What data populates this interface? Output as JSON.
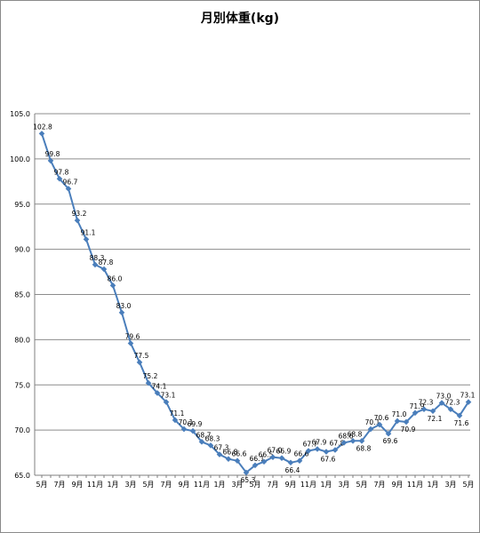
{
  "chart_data": {
    "type": "line",
    "title": "月別体重(kg)",
    "xlabel": "",
    "ylabel": "",
    "ylim": [
      65.0,
      105.0
    ],
    "yticks": [
      "65.0",
      "70.0",
      "75.0",
      "80.0",
      "85.0",
      "90.0",
      "95.0",
      "100.0",
      "105.0"
    ],
    "grid": "horizontal",
    "legend": "none",
    "colors": {
      "line": "#4a7ebb",
      "grid": "#8c8c8c",
      "axis": "#7f7f7f"
    },
    "x_tick_labels": [
      "5月",
      "7月",
      "9月",
      "11月",
      "1月",
      "3月",
      "5月",
      "7月",
      "9月",
      "11月",
      "1月",
      "3月",
      "5月",
      "7月",
      "9月",
      "11月",
      "1月",
      "3月",
      "5月",
      "7月",
      "9月",
      "11月",
      "1月",
      "3月",
      "5月"
    ],
    "values": [
      102.8,
      99.8,
      97.8,
      96.7,
      93.2,
      91.1,
      88.3,
      87.8,
      86.0,
      83.0,
      79.6,
      77.5,
      75.2,
      74.1,
      73.1,
      71.1,
      70.1,
      69.9,
      68.7,
      68.3,
      67.3,
      66.8,
      66.6,
      65.3,
      66.1,
      66.5,
      67.0,
      66.9,
      66.4,
      66.6,
      67.7,
      67.9,
      67.6,
      67.8,
      68.6,
      68.8,
      68.8,
      70.1,
      70.6,
      69.6,
      71.0,
      70.9,
      71.9,
      72.3,
      72.1,
      73.0,
      72.3,
      71.6,
      73.1
    ],
    "data_labels": [
      "102.8",
      "99.8",
      "97.8",
      "96.7",
      "93.2",
      "91.1",
      "88.3",
      "87.8",
      "86.0",
      "83.0",
      "79.6",
      "77.5",
      "75.2",
      "74.1",
      "73.1",
      "71.1",
      "70.1",
      "69.9",
      "68.7",
      "68.3",
      "67.3",
      "66.8",
      "66.6",
      "65.3",
      "66.1",
      "66.5",
      "67.0",
      "66.9",
      "66.4",
      "66.6",
      "67.7",
      "67.9",
      "67.6",
      "67.8",
      "68.6",
      "68.8",
      "68.8",
      "70.1",
      "70.6",
      "69.6",
      "71.0",
      "70.9",
      "71.9",
      "72.3",
      "72.1",
      "73.0",
      "72.3",
      "71.6",
      "73.1"
    ]
  }
}
